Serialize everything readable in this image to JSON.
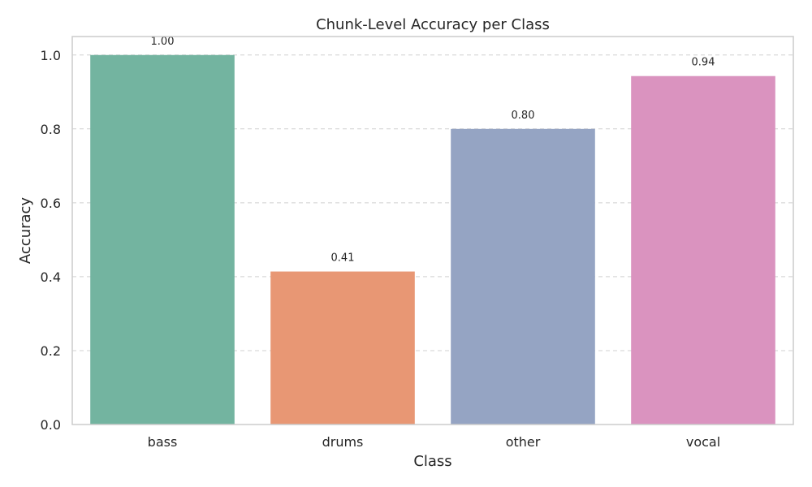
{
  "chart_data": {
    "type": "bar",
    "title": "Chunk-Level Accuracy per Class",
    "xlabel": "Class",
    "ylabel": "Accuracy",
    "categories": [
      "bass",
      "drums",
      "other",
      "vocal"
    ],
    "values": [
      1.0,
      0.414,
      0.8,
      0.943
    ],
    "data_labels": [
      "1.00",
      "0.41",
      "0.80",
      "0.94"
    ],
    "colors": [
      "#73b4a0",
      "#e89774",
      "#95a4c3",
      "#da93bf"
    ],
    "ylim": [
      0,
      1.05
    ],
    "yticks": [
      0.0,
      0.2,
      0.4,
      0.6,
      0.8,
      1.0
    ],
    "ytick_labels": [
      "0.0",
      "0.2",
      "0.4",
      "0.6",
      "0.8",
      "1.0"
    ],
    "grid": "horizontal dashed"
  }
}
